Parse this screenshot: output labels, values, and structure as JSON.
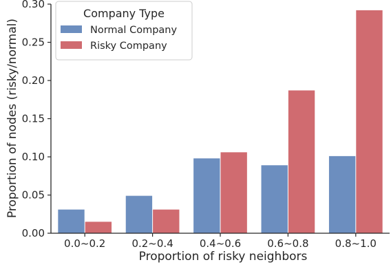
{
  "chart_data": {
    "type": "bar",
    "title": "",
    "xlabel": "Proportion of risky neighbors",
    "ylabel": "Proportion of nodes (risky/normal)",
    "categories": [
      "0.0~0.2",
      "0.2~0.4",
      "0.4~0.6",
      "0.6~0.8",
      "0.8~1.0"
    ],
    "series": [
      {
        "name": "Normal Company",
        "color": "#6c8ebf",
        "values": [
          0.031,
          0.049,
          0.098,
          0.089,
          0.101
        ]
      },
      {
        "name": "Risky Company",
        "color": "#d06b70",
        "values": [
          0.015,
          0.031,
          0.106,
          0.187,
          0.292
        ]
      }
    ],
    "ylim": [
      0,
      0.3
    ],
    "yticks": [
      "0.00",
      "0.05",
      "0.10",
      "0.15",
      "0.20",
      "0.25",
      "0.30"
    ],
    "grid": false,
    "legend": {
      "title": "Company Type",
      "placement": "top-left"
    }
  }
}
